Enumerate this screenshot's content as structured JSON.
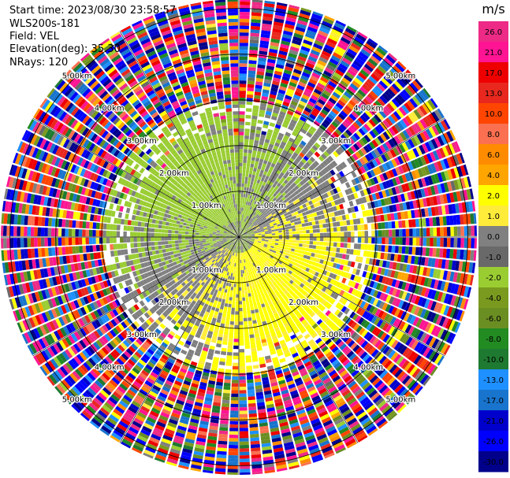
{
  "header": {
    "start_time": "Start time: 2023/08/30 23:58:57",
    "instrument": "WLS200s-181",
    "field": "Field: VEL",
    "elevation": "Elevation(deg): 35.30",
    "nrays": "NRays: 120"
  },
  "chart_data": {
    "type": "heatmap",
    "projection": "polar PPI",
    "field": "VEL",
    "units": "m/s",
    "n_rays": 120,
    "elevation_deg": 35.3,
    "range_ring_labels": [
      "1.00km",
      "2.00km",
      "3.00km",
      "4.00km",
      "5.00km"
    ],
    "range_rings_km": [
      1,
      2,
      3,
      4,
      5
    ],
    "max_range_km": 5.2,
    "colorbar": {
      "unit": "m/s",
      "ticks": [
        26.0,
        21.0,
        17.0,
        13.0,
        10.0,
        8.0,
        6.0,
        4.0,
        2.0,
        1.0,
        0.0,
        -1.0,
        -2.0,
        -4.0,
        -6.0,
        -8.0,
        -10.0,
        -13.0,
        -17.0,
        -21.0,
        -26.0,
        -30.0
      ],
      "tick_labels": [
        "26.0",
        "21.0",
        "17.0",
        "13.0",
        "10.0",
        "8.0",
        "6.0",
        "4.0",
        "2.0",
        "1.0",
        "0.0",
        "-1.0",
        "-2.0",
        "-4.0",
        "-6.0",
        "-8.0",
        "-10.0",
        "-13.0",
        "-17.0",
        "-21.0",
        "-26.0",
        "-30.0"
      ],
      "colors": [
        "#ee2a87",
        "#ff1493",
        "#ee0000",
        "#e8281e",
        "#ff4500",
        "#fa7050",
        "#ff8c00",
        "#ffa500",
        "#ffff00",
        "#ffec3a",
        "#808080",
        "#696969",
        "#9acd32",
        "#7a9a1f",
        "#6b8e23",
        "#228b22",
        "#1e7a30",
        "#1e90ff",
        "#1874cd",
        "#0000cd",
        "#0000ff",
        "#00008b"
      ]
    },
    "observed_range": [
      -30.0,
      30.0
    ],
    "near_range_dominant_values": [
      0.0,
      1.0,
      2.0,
      4.0,
      -1.0,
      -2.0
    ]
  }
}
